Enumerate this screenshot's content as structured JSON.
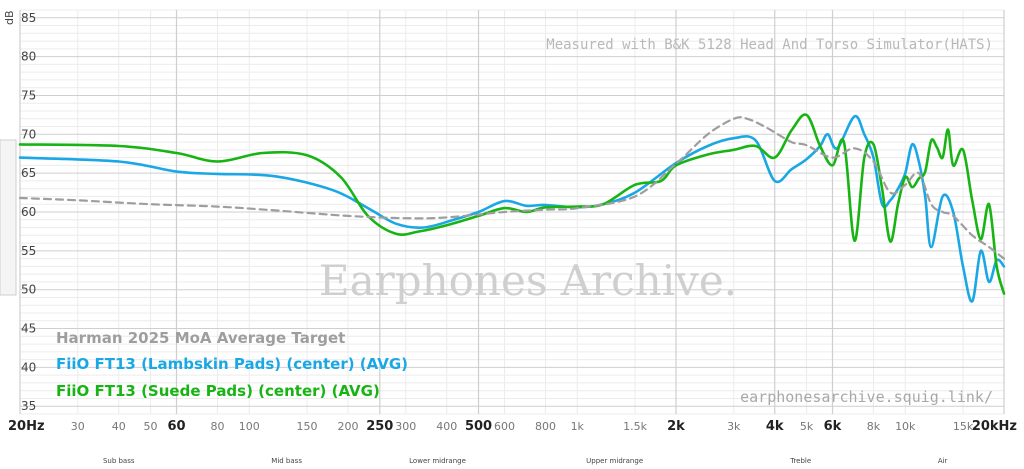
{
  "colors": {
    "target": "#9e9e9e",
    "lambskin": "#1aa7e6",
    "suede": "#18b414",
    "grid_major": "#cfcfcf",
    "grid_minor": "#ececec"
  },
  "annotations": {
    "top_right": "Measured with B&K 5128 Head And Torso Simulator(HATS)",
    "watermark": "Earphones Archive.",
    "url": "earphonesarchive.squig.link/"
  },
  "chart_data": {
    "type": "line",
    "xscale": "log",
    "xlim": [
      20,
      20000
    ],
    "ylim": [
      34,
      86
    ],
    "y_unit": "dB",
    "grid": true,
    "legend_position": "bottom-left",
    "yticks": [
      35,
      40,
      45,
      50,
      55,
      60,
      65,
      70,
      75,
      80,
      85
    ],
    "xticks": [
      {
        "v": 20,
        "label": "20Hz",
        "major": true
      },
      {
        "v": 30,
        "label": "30",
        "major": false
      },
      {
        "v": 40,
        "label": "40",
        "major": false
      },
      {
        "v": 50,
        "label": "50",
        "major": false
      },
      {
        "v": 60,
        "label": "60",
        "major": true
      },
      {
        "v": 80,
        "label": "80",
        "major": false
      },
      {
        "v": 100,
        "label": "100",
        "major": false
      },
      {
        "v": 150,
        "label": "150",
        "major": false
      },
      {
        "v": 200,
        "label": "200",
        "major": false
      },
      {
        "v": 250,
        "label": "250",
        "major": true
      },
      {
        "v": 300,
        "label": "300",
        "major": false
      },
      {
        "v": 400,
        "label": "400",
        "major": false
      },
      {
        "v": 500,
        "label": "500",
        "major": true
      },
      {
        "v": 600,
        "label": "600",
        "major": false
      },
      {
        "v": 800,
        "label": "800",
        "major": false
      },
      {
        "v": 1000,
        "label": "1k",
        "major": false
      },
      {
        "v": 1500,
        "label": "1.5k",
        "major": false
      },
      {
        "v": 2000,
        "label": "2k",
        "major": true
      },
      {
        "v": 3000,
        "label": "3k",
        "major": false
      },
      {
        "v": 4000,
        "label": "4k",
        "major": true
      },
      {
        "v": 5000,
        "label": "5k",
        "major": false
      },
      {
        "v": 6000,
        "label": "6k",
        "major": true
      },
      {
        "v": 8000,
        "label": "8k",
        "major": false
      },
      {
        "v": 10000,
        "label": "10k",
        "major": false
      },
      {
        "v": 15000,
        "label": "15k",
        "major": false
      },
      {
        "v": 20000,
        "label": "20kHz",
        "major": true
      }
    ],
    "bands": [
      {
        "label": "Sub bass",
        "v": 40
      },
      {
        "label": "Mid bass",
        "v": 130
      },
      {
        "label": "Lower midrange",
        "v": 375
      },
      {
        "label": "Upper midrange",
        "v": 1300
      },
      {
        "label": "Treble",
        "v": 4800
      },
      {
        "label": "Air",
        "v": 13000
      }
    ],
    "series": [
      {
        "name": "Harman 2025 MoA Average Target",
        "color_key": "target",
        "dashed": true,
        "points": [
          [
            20,
            61.8
          ],
          [
            30,
            61.5
          ],
          [
            50,
            61
          ],
          [
            80,
            60.7
          ],
          [
            120,
            60.2
          ],
          [
            200,
            59.5
          ],
          [
            300,
            59.2
          ],
          [
            400,
            59.3
          ],
          [
            600,
            60
          ],
          [
            800,
            60.3
          ],
          [
            1000,
            60.5
          ],
          [
            1500,
            62
          ],
          [
            2000,
            66.2
          ],
          [
            2500,
            70
          ],
          [
            3000,
            72
          ],
          [
            3300,
            72
          ],
          [
            3800,
            70.8
          ],
          [
            4500,
            69
          ],
          [
            5000,
            68.6
          ],
          [
            6000,
            67
          ],
          [
            7000,
            68.2
          ],
          [
            8000,
            66.5
          ],
          [
            9000,
            62.5
          ],
          [
            10000,
            63.5
          ],
          [
            11000,
            65
          ],
          [
            12000,
            61
          ],
          [
            13000,
            60
          ],
          [
            14000,
            59.5
          ],
          [
            16000,
            57
          ],
          [
            18000,
            55.5
          ],
          [
            20000,
            54
          ]
        ]
      },
      {
        "name": "FiiO FT13 (Lambskin Pads) (center) (AVG)",
        "color_key": "lambskin",
        "dashed": false,
        "points": [
          [
            20,
            67
          ],
          [
            40,
            66.5
          ],
          [
            60,
            65.2
          ],
          [
            80,
            64.9
          ],
          [
            120,
            64.6
          ],
          [
            180,
            62.8
          ],
          [
            230,
            60.5
          ],
          [
            280,
            58.5
          ],
          [
            340,
            58
          ],
          [
            420,
            59
          ],
          [
            500,
            60
          ],
          [
            600,
            61.4
          ],
          [
            700,
            60.8
          ],
          [
            800,
            60.9
          ],
          [
            1000,
            60.6
          ],
          [
            1200,
            61
          ],
          [
            1500,
            62.5
          ],
          [
            2000,
            66.3
          ],
          [
            2500,
            68.5
          ],
          [
            3000,
            69.5
          ],
          [
            3500,
            69.2
          ],
          [
            4000,
            64
          ],
          [
            4500,
            65.5
          ],
          [
            5000,
            66.8
          ],
          [
            5500,
            68.5
          ],
          [
            5800,
            70
          ],
          [
            6200,
            68.2
          ],
          [
            7000,
            72.3
          ],
          [
            7500,
            70
          ],
          [
            8000,
            67
          ],
          [
            8500,
            61
          ],
          [
            9000,
            61.5
          ],
          [
            9500,
            63
          ],
          [
            10000,
            65
          ],
          [
            10500,
            68.7
          ],
          [
            11000,
            66.5
          ],
          [
            11500,
            62
          ],
          [
            12000,
            55.5
          ],
          [
            13000,
            62
          ],
          [
            14000,
            60
          ],
          [
            15000,
            53
          ],
          [
            16000,
            48.5
          ],
          [
            17000,
            55
          ],
          [
            18000,
            51
          ],
          [
            19000,
            53.8
          ],
          [
            20000,
            53
          ]
        ]
      },
      {
        "name": "FiiO FT13 (Suede Pads) (center) (AVG)",
        "color_key": "suede",
        "dashed": false,
        "points": [
          [
            20,
            68.7
          ],
          [
            40,
            68.5
          ],
          [
            60,
            67.6
          ],
          [
            80,
            66.5
          ],
          [
            110,
            67.6
          ],
          [
            150,
            67.3
          ],
          [
            190,
            64.5
          ],
          [
            230,
            59.5
          ],
          [
            280,
            57.2
          ],
          [
            330,
            57.5
          ],
          [
            400,
            58.3
          ],
          [
            500,
            59.5
          ],
          [
            600,
            60.5
          ],
          [
            700,
            60
          ],
          [
            800,
            60.6
          ],
          [
            1000,
            60.7
          ],
          [
            1200,
            61
          ],
          [
            1500,
            63.5
          ],
          [
            1800,
            64
          ],
          [
            2000,
            66
          ],
          [
            2500,
            67.4
          ],
          [
            3000,
            68
          ],
          [
            3500,
            68.5
          ],
          [
            4000,
            67
          ],
          [
            4500,
            70.5
          ],
          [
            5000,
            72.5
          ],
          [
            5500,
            68.5
          ],
          [
            6000,
            66
          ],
          [
            6500,
            69
          ],
          [
            7000,
            56.3
          ],
          [
            7500,
            67
          ],
          [
            8000,
            68.7
          ],
          [
            8500,
            63
          ],
          [
            9000,
            56.2
          ],
          [
            9500,
            61
          ],
          [
            10000,
            64.5
          ],
          [
            10500,
            63.2
          ],
          [
            11000,
            64.3
          ],
          [
            11500,
            65.2
          ],
          [
            12000,
            69.2
          ],
          [
            12500,
            68.3
          ],
          [
            13000,
            67
          ],
          [
            13500,
            70.6
          ],
          [
            14000,
            66
          ],
          [
            15000,
            68
          ],
          [
            16000,
            61.5
          ],
          [
            17000,
            56.5
          ],
          [
            18000,
            61
          ],
          [
            19000,
            53
          ],
          [
            20000,
            49.5
          ]
        ]
      }
    ]
  }
}
